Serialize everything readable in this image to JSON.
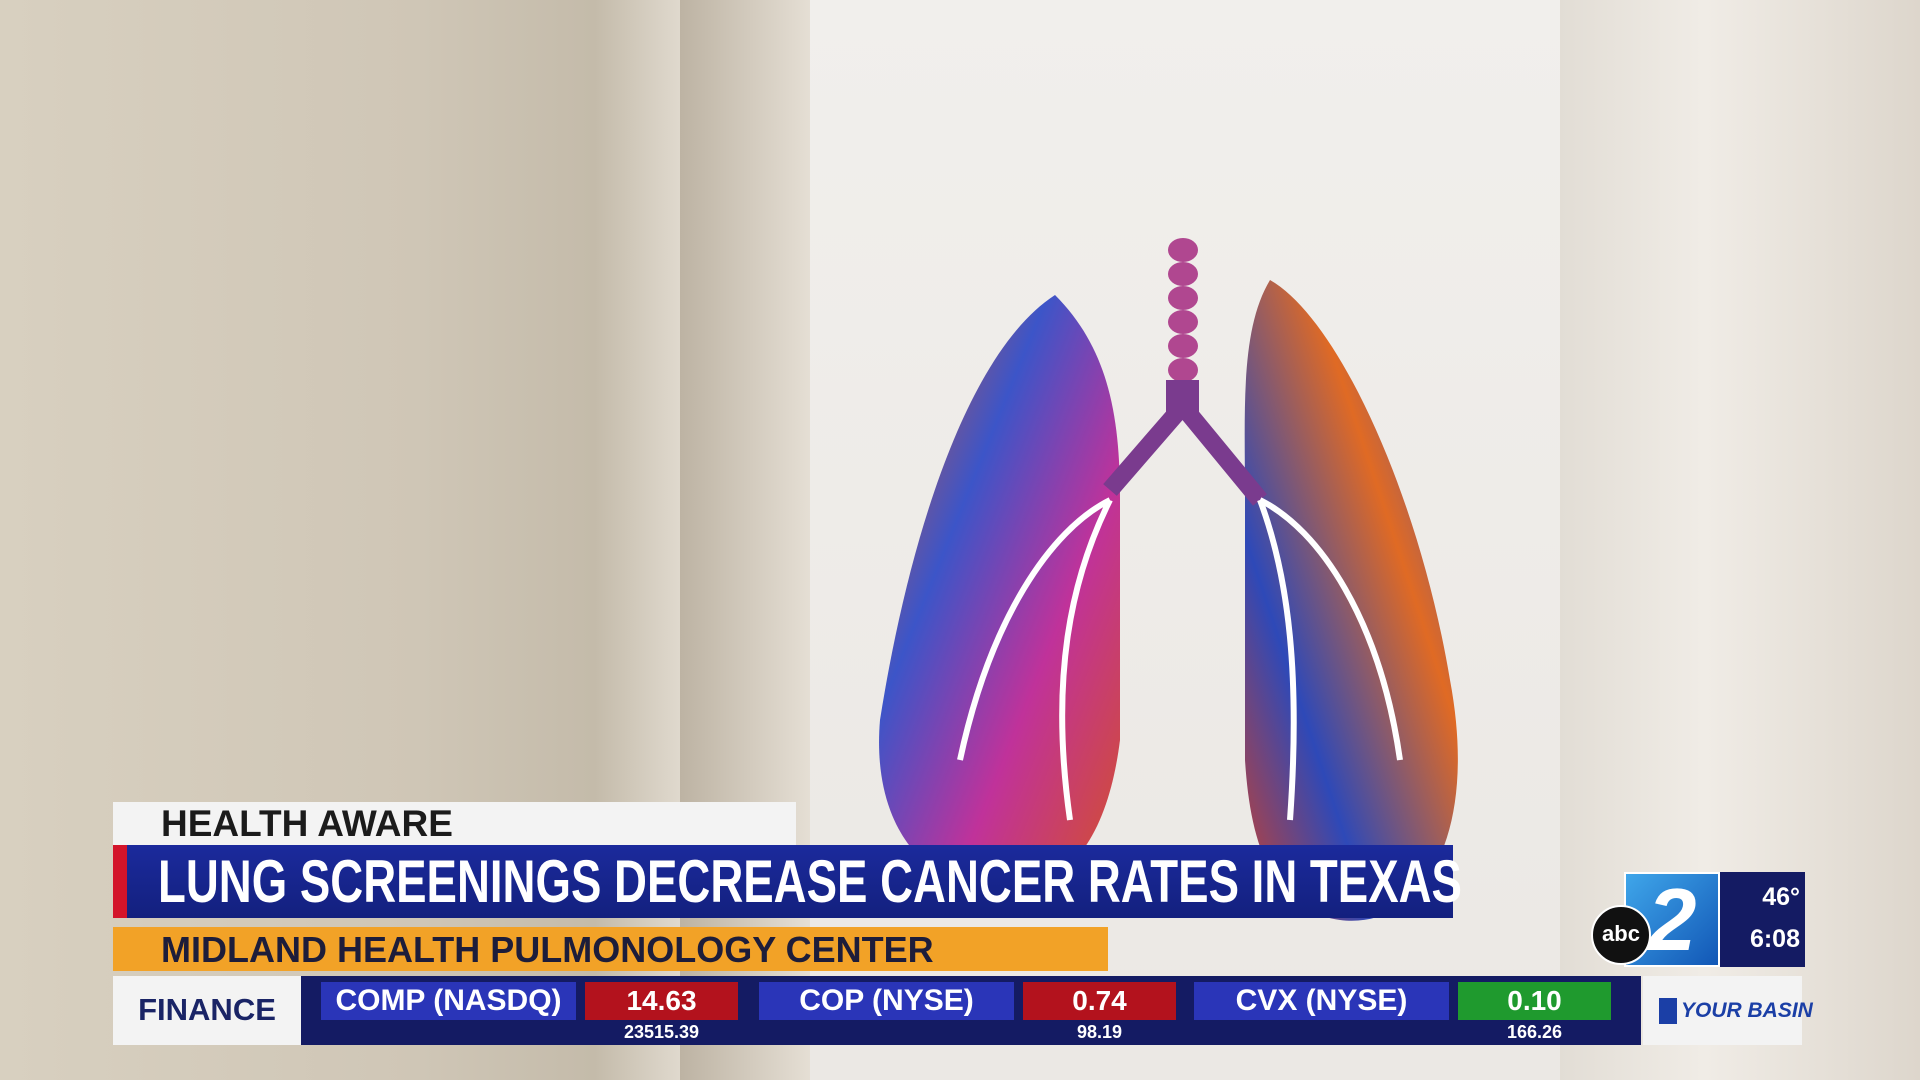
{
  "lower_third": {
    "kicker": "HEALTH AWARE",
    "headline": "LUNG SCREENINGS DECREASE CANCER RATES IN TEXAS",
    "subhead": "MIDLAND HEALTH PULMONOLOGY CENTER"
  },
  "ticker": {
    "label": "FINANCE",
    "items": [
      {
        "symbol": "COMP (NASDQ)",
        "change": "14.63",
        "price": "23515.39",
        "color": "#b3121d"
      },
      {
        "symbol": "COP (NYSE)",
        "change": "0.74",
        "price": "98.19",
        "color": "#b3121d"
      },
      {
        "symbol": "CVX (NYSE)",
        "change": "0.10",
        "price": "166.26",
        "color": "#1f9a2e"
      }
    ]
  },
  "bug": {
    "network": "abc",
    "channel": "2",
    "temperature": "46°",
    "time": "6:08",
    "brand": "YOUR BASIN"
  }
}
